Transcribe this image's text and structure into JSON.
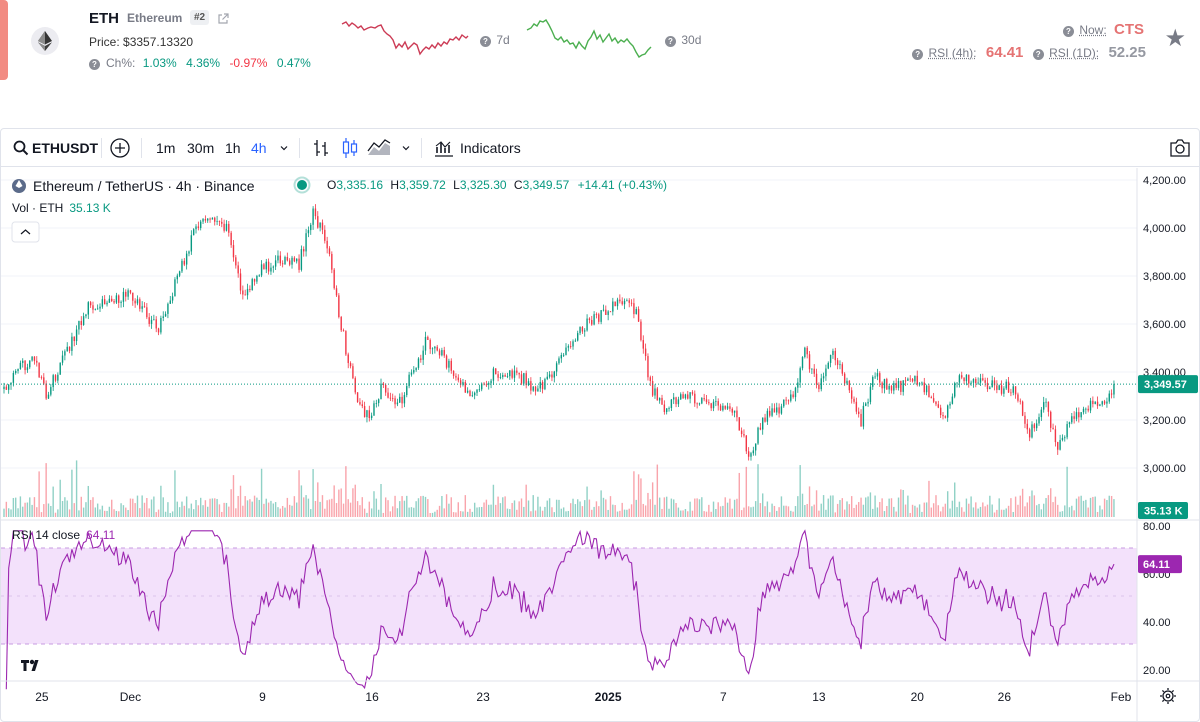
{
  "header": {
    "symbol": "ETH",
    "name": "Ethereum",
    "rank": "#2",
    "price_label": "Price:",
    "price_value": "$3357.13320",
    "change_label": "Ch%:",
    "changes": [
      "1.03%",
      "4.36%",
      "-0.97%",
      "0.47%"
    ],
    "spark_7d_label": "7d",
    "spark_30d_label": "30d",
    "spark_7d_color": "#cc3b55",
    "spark_30d_color": "#4caf50",
    "now_label": "Now:",
    "now_value": "CTS",
    "rsi_4h_label": "RSI (4h):",
    "rsi_4h_value": "64.41",
    "rsi_1d_label": "RSI (1D):",
    "rsi_1d_value": "52.25",
    "icons": [
      "ethereum-logo",
      "external-link-icon",
      "help-icon",
      "star-icon"
    ]
  },
  "toolbar": {
    "symbol": "ETHUSDT",
    "intervals": [
      "1m",
      "30m",
      "1h",
      "4h"
    ],
    "active_interval": "4h",
    "indicators_label": "Indicators",
    "icons": [
      "search-icon",
      "add-symbol-icon",
      "chevron-down-icon",
      "bar-style-icon",
      "candle-style-icon",
      "area-style-icon",
      "indicators-icon",
      "camera-icon"
    ]
  },
  "legend": {
    "title": "Ethereum / TetherUS · 4h · Binance",
    "o_label": "O",
    "o": "3,335.16",
    "h_label": "H",
    "h": "3,359.72",
    "l_label": "L",
    "l": "3,325.30",
    "c_label": "C",
    "c": "3,349.57",
    "change": "+14.41 (+0.43%)",
    "vol_label": "Vol · ETH",
    "vol_value": "35.13 K",
    "rsi_label": "RSI 14 close",
    "rsi_value": "64.11"
  },
  "colors": {
    "up": "#089981",
    "down": "#f23645",
    "rsi_line": "#9c27b0",
    "rsi_band": "#f3e1fb",
    "accent": "#2962ff"
  },
  "chart_data": [
    {
      "type": "candlestick",
      "title": "Ethereum / TetherUS · 4h · Binance",
      "x_tick_labels": [
        "25",
        "Dec",
        "9",
        "16",
        "23",
        "2025",
        "7",
        "13",
        "20",
        "26",
        "Feb"
      ],
      "y_tick_labels": [
        "4,200.00",
        "4,000.00",
        "3,800.00",
        "3,600.00",
        "3,400.00",
        "3,200.00",
        "3,000.00"
      ],
      "ylim": [
        2900,
        4200
      ],
      "last_price": 3349.57,
      "last_price_label": "3,349.57",
      "volume_label": "35.13 K",
      "close_anchors_by_day": [
        [
          0,
          3330
        ],
        [
          2,
          3470
        ],
        [
          3,
          3300
        ],
        [
          6,
          3680
        ],
        [
          9,
          3720
        ],
        [
          11,
          3580
        ],
        [
          13,
          3900
        ],
        [
          14,
          4040
        ],
        [
          16,
          3990
        ],
        [
          17,
          3700
        ],
        [
          18,
          3820
        ],
        [
          20,
          3870
        ],
        [
          21,
          3850
        ],
        [
          22,
          4070
        ],
        [
          23,
          3930
        ],
        [
          24,
          3600
        ],
        [
          25,
          3300
        ],
        [
          26,
          3200
        ],
        [
          27,
          3350
        ],
        [
          28,
          3250
        ],
        [
          30,
          3520
        ],
        [
          31,
          3480
        ],
        [
          33,
          3310
        ],
        [
          35,
          3400
        ],
        [
          37,
          3370
        ],
        [
          38,
          3320
        ],
        [
          40,
          3480
        ],
        [
          41,
          3590
        ],
        [
          43,
          3650
        ],
        [
          44,
          3700
        ],
        [
          45,
          3640
        ],
        [
          46,
          3340
        ],
        [
          47,
          3240
        ],
        [
          48,
          3300
        ],
        [
          50,
          3280
        ],
        [
          52,
          3230
        ],
        [
          53,
          3050
        ],
        [
          54,
          3200
        ],
        [
          56,
          3280
        ],
        [
          57,
          3480
        ],
        [
          58,
          3330
        ],
        [
          59,
          3480
        ],
        [
          60,
          3350
        ],
        [
          61,
          3200
        ],
        [
          62,
          3390
        ],
        [
          63,
          3320
        ],
        [
          65,
          3370
        ],
        [
          66,
          3290
        ],
        [
          67,
          3210
        ],
        [
          68,
          3390
        ],
        [
          70,
          3340
        ],
        [
          72,
          3330
        ],
        [
          73,
          3140
        ],
        [
          74,
          3280
        ],
        [
          75,
          3100
        ],
        [
          76,
          3200
        ],
        [
          77,
          3270
        ],
        [
          78,
          3250
        ],
        [
          79,
          3349.57
        ]
      ]
    },
    {
      "type": "line",
      "title": "RSI 14 close",
      "last_value": 64.11,
      "last_value_label": "64.11",
      "band": [
        30,
        70
      ],
      "y_tick_labels": [
        "80.00",
        "60.00",
        "40.00",
        "20.00"
      ],
      "ylim": [
        10,
        80
      ]
    }
  ]
}
